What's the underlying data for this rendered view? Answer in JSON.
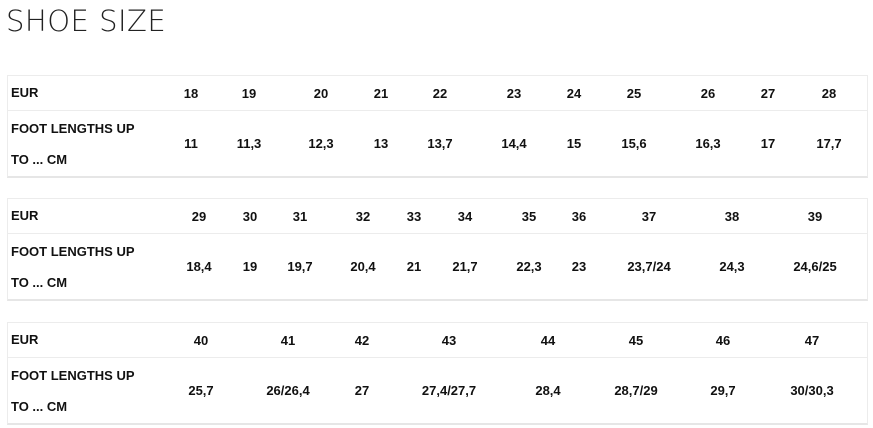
{
  "title": "SHOE SIZE",
  "row_labels": {
    "eur": "EUR",
    "foot": "FOOT LENGTHS UP",
    "foot2": "TO ... CM"
  },
  "tables": [
    {
      "eur": [
        "18",
        "19",
        "20",
        "21",
        "22",
        "23",
        "24",
        "25",
        "26",
        "27",
        "28"
      ],
      "cm": [
        "11",
        "11,3",
        "12,3",
        "13",
        "13,7",
        "14,4",
        "15",
        "15,6",
        "16,3",
        "17",
        "17,7"
      ]
    },
    {
      "eur": [
        "29",
        "30",
        "31",
        "32",
        "33",
        "34",
        "35",
        "36",
        "37",
        "38",
        "39"
      ],
      "cm": [
        "18,4",
        "19",
        "19,7",
        "20,4",
        "21",
        "21,7",
        "22,3",
        "23",
        "23,7/24",
        "24,3",
        "24,6/25"
      ]
    },
    {
      "eur": [
        "40",
        "41",
        "42",
        "43",
        "44",
        "45",
        "46",
        "47"
      ],
      "cm": [
        "25,7",
        "26/26,4",
        "27",
        "27,4/27,7",
        "28,4",
        "28,7/29",
        "29,7",
        "30/30,3"
      ]
    }
  ]
}
